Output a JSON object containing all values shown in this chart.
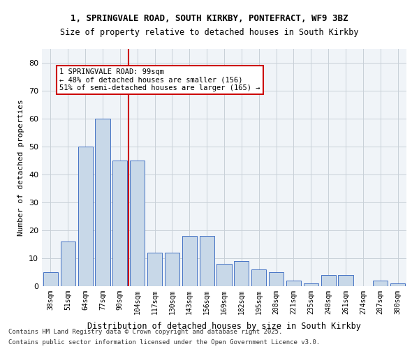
{
  "title_line1": "1, SPRINGVALE ROAD, SOUTH KIRKBY, PONTEFRACT, WF9 3BZ",
  "title_line2": "Size of property relative to detached houses in South Kirkby",
  "xlabel": "Distribution of detached houses by size in South Kirkby",
  "ylabel": "Number of detached properties",
  "categories": [
    "38sqm",
    "51sqm",
    "64sqm",
    "77sqm",
    "90sqm",
    "104sqm",
    "117sqm",
    "130sqm",
    "143sqm",
    "156sqm",
    "169sqm",
    "182sqm",
    "195sqm",
    "208sqm",
    "221sqm",
    "235sqm",
    "248sqm",
    "261sqm",
    "274sqm",
    "287sqm",
    "300sqm"
  ],
  "values": [
    5,
    16,
    50,
    60,
    45,
    45,
    12,
    12,
    18,
    18,
    8,
    9,
    6,
    5,
    2,
    1,
    4,
    4,
    0,
    2,
    1
  ],
  "bar_color": "#c8d8e8",
  "bar_edge_color": "#4472c4",
  "grid_color": "#c8d0d8",
  "background_color": "#f0f4f8",
  "annotation_box_color": "#ffffff",
  "annotation_border_color": "#cc0000",
  "vline_color": "#cc0000",
  "vline_x": 4.5,
  "annotation_text_line1": "1 SPRINGVALE ROAD: 99sqm",
  "annotation_text_line2": "← 48% of detached houses are smaller (156)",
  "annotation_text_line3": "51% of semi-detached houses are larger (165) →",
  "footer_line1": "Contains HM Land Registry data © Crown copyright and database right 2025.",
  "footer_line2": "Contains public sector information licensed under the Open Government Licence v3.0.",
  "ylim": [
    0,
    85
  ],
  "yticks": [
    0,
    10,
    20,
    30,
    40,
    50,
    60,
    70,
    80
  ]
}
